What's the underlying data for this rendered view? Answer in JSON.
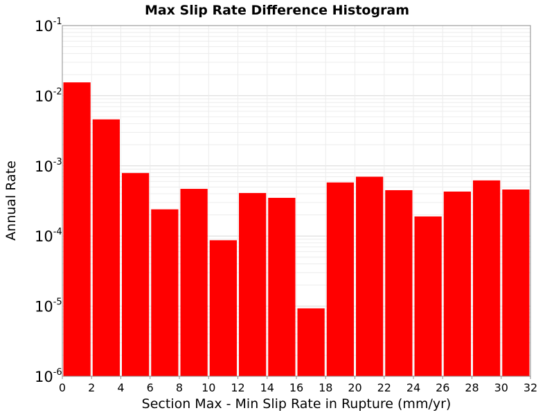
{
  "chart_data": {
    "type": "bar",
    "title": "Max Slip Rate Difference Histogram",
    "xlabel": "Section Max - Min Slip Rate in Rupture (mm/yr)",
    "ylabel": "Annual Rate",
    "xlim": [
      0,
      32
    ],
    "ylim": [
      1e-06,
      0.1
    ],
    "yscale": "log",
    "grid": true,
    "bar_color": "#ff0000",
    "bin_width": 2,
    "x_ticks": [
      "0",
      "2",
      "4",
      "6",
      "8",
      "10",
      "12",
      "14",
      "16",
      "18",
      "20",
      "22",
      "24",
      "26",
      "28",
      "30",
      "32"
    ],
    "y_ticks": [
      {
        "base": "10",
        "exp": "-6",
        "value": 1e-06
      },
      {
        "base": "10",
        "exp": "-5",
        "value": 1e-05
      },
      {
        "base": "10",
        "exp": "-4",
        "value": 0.0001
      },
      {
        "base": "10",
        "exp": "-3",
        "value": 0.001
      },
      {
        "base": "10",
        "exp": "-2",
        "value": 0.01
      },
      {
        "base": "10",
        "exp": "-1",
        "value": 0.1
      }
    ],
    "bins": [
      {
        "x": 1,
        "value": 0.0155
      },
      {
        "x": 3,
        "value": 0.0046
      },
      {
        "x": 5,
        "value": 0.00079
      },
      {
        "x": 7,
        "value": 0.00024
      },
      {
        "x": 9,
        "value": 0.00047
      },
      {
        "x": 11,
        "value": 8.7e-05
      },
      {
        "x": 13,
        "value": 0.00041
      },
      {
        "x": 15,
        "value": 0.00035
      },
      {
        "x": 17,
        "value": 9.3e-06
      },
      {
        "x": 19,
        "value": 0.00058
      },
      {
        "x": 21,
        "value": 0.0007
      },
      {
        "x": 23,
        "value": 0.00045
      },
      {
        "x": 25,
        "value": 0.00019
      },
      {
        "x": 27,
        "value": 0.00043
      },
      {
        "x": 29,
        "value": 0.00062
      },
      {
        "x": 31,
        "value": 0.00046
      }
    ]
  }
}
